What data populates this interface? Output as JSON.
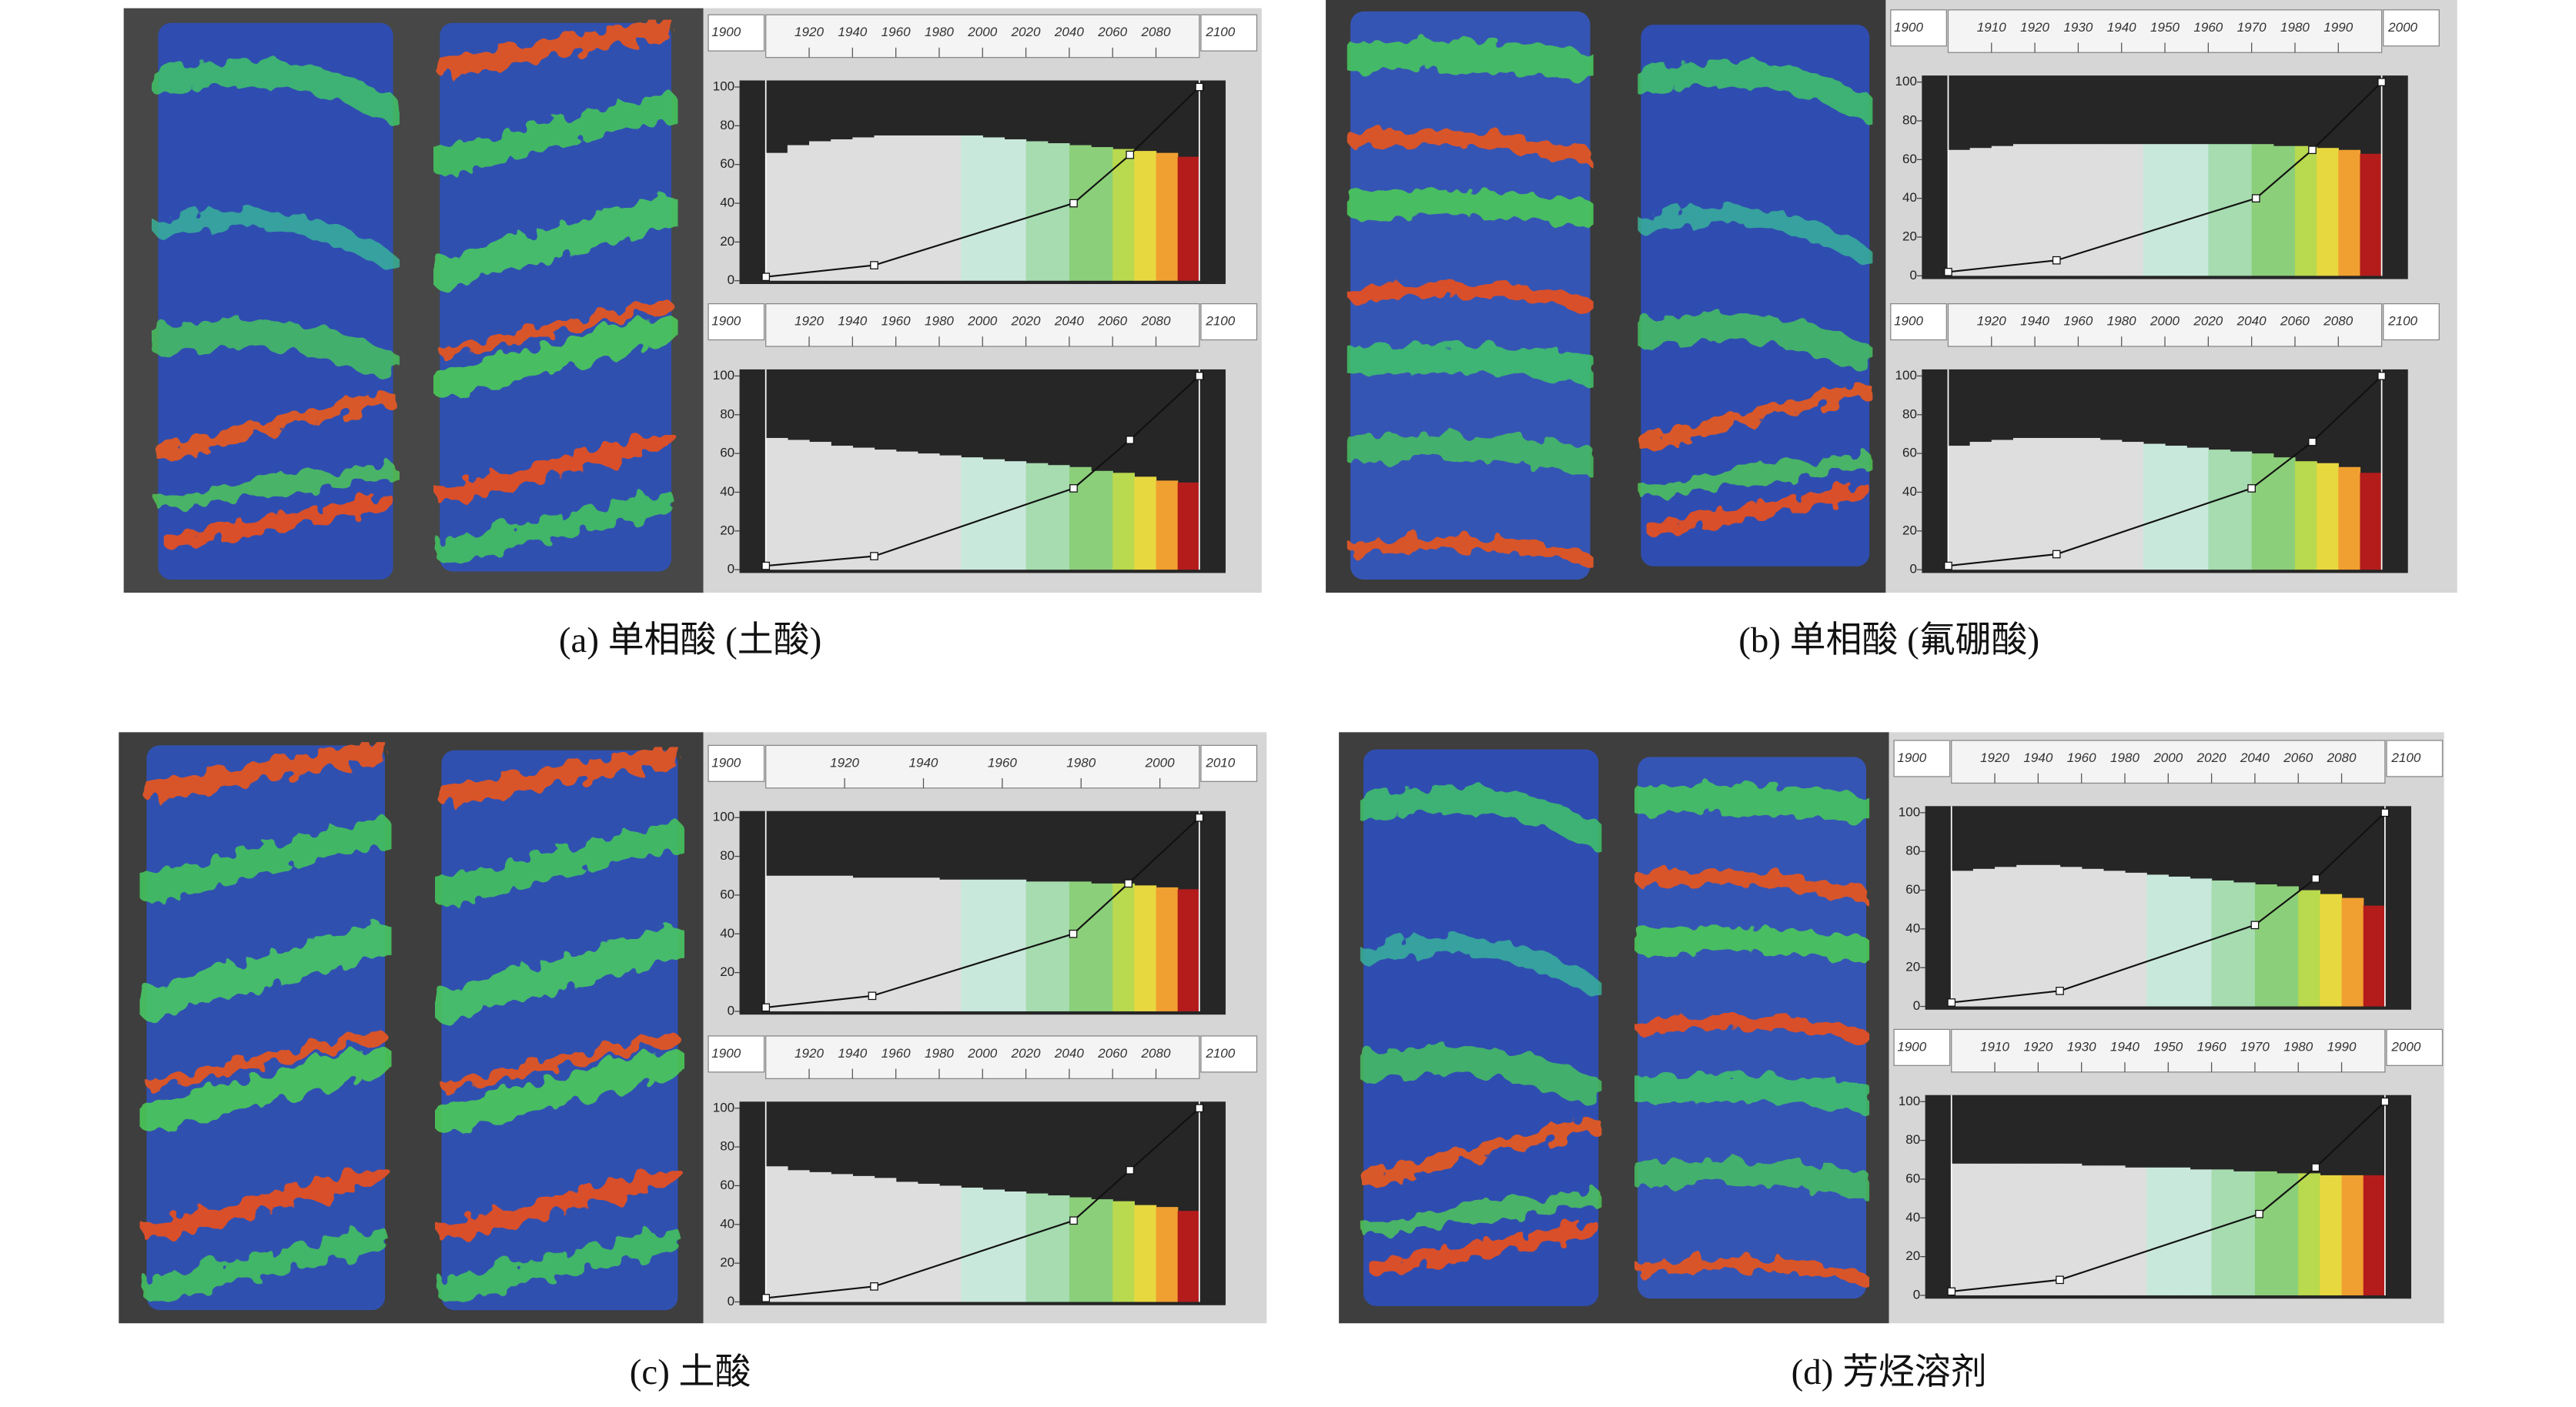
{
  "ylim": [
    0,
    100
  ],
  "yticks": [
    0,
    20,
    40,
    60,
    80,
    100
  ],
  "panels": [
    {
      "caption": "(a) 单相酸 (土酸)",
      "widgets": [
        {
          "xlim": [
            1900,
            2100
          ],
          "xticks": [
            1920,
            1940,
            1960,
            1980,
            2000,
            2020,
            2040,
            2060,
            2080
          ],
          "histogram": [
            66,
            70,
            72,
            73,
            74,
            75,
            75,
            75,
            75,
            75,
            74,
            73,
            72,
            71,
            70,
            69,
            68,
            67,
            66,
            64
          ],
          "curve_x": [
            1900,
            1950,
            2042,
            2068,
            2100
          ],
          "curve_y": [
            2,
            8,
            40,
            65,
            100
          ]
        },
        {
          "xlim": [
            1900,
            2100
          ],
          "xticks": [
            1920,
            1940,
            1960,
            1980,
            2000,
            2020,
            2040,
            2060,
            2080
          ],
          "histogram": [
            68,
            67,
            66,
            64,
            63,
            62,
            61,
            60,
            59,
            58,
            57,
            56,
            55,
            54,
            53,
            51,
            50,
            48,
            46,
            45
          ],
          "curve_x": [
            1900,
            1950,
            2042,
            2068,
            2100
          ],
          "curve_y": [
            2,
            7,
            42,
            67,
            100
          ]
        }
      ]
    },
    {
      "caption": "(b) 单相酸 (氟硼酸)",
      "widgets": [
        {
          "xlim": [
            1900,
            2000
          ],
          "xticks": [
            1910,
            1920,
            1930,
            1940,
            1950,
            1960,
            1970,
            1980,
            1990
          ],
          "histogram": [
            65,
            66,
            67,
            68,
            68,
            68,
            68,
            68,
            68,
            68,
            68,
            68,
            68,
            68,
            68,
            67,
            67,
            66,
            65,
            63
          ],
          "curve_x": [
            1900,
            1925,
            1971,
            1984,
            2000
          ],
          "curve_y": [
            2,
            8,
            40,
            65,
            100
          ]
        },
        {
          "xlim": [
            1900,
            2100
          ],
          "xticks": [
            1920,
            1940,
            1960,
            1980,
            2000,
            2020,
            2040,
            2060,
            2080
          ],
          "histogram": [
            64,
            66,
            67,
            68,
            68,
            68,
            68,
            67,
            66,
            65,
            64,
            63,
            62,
            61,
            60,
            58,
            56,
            55,
            53,
            50
          ],
          "curve_x": [
            1900,
            1950,
            2040,
            2068,
            2100
          ],
          "curve_y": [
            2,
            8,
            42,
            66,
            100
          ]
        }
      ]
    },
    {
      "caption": "(c) 土酸",
      "widgets": [
        {
          "xlim": [
            1900,
            2010
          ],
          "xticks": [
            1920,
            1940,
            1960,
            1980,
            2000
          ],
          "histogram": [
            70,
            70,
            70,
            70,
            69,
            69,
            69,
            69,
            68,
            68,
            68,
            68,
            67,
            67,
            67,
            66,
            66,
            65,
            64,
            63
          ],
          "curve_x": [
            1900,
            1927,
            1978,
            1992,
            2010
          ],
          "curve_y": [
            2,
            8,
            40,
            66,
            100
          ]
        },
        {
          "xlim": [
            1900,
            2100
          ],
          "xticks": [
            1920,
            1940,
            1960,
            1980,
            2000,
            2020,
            2040,
            2060,
            2080
          ],
          "histogram": [
            70,
            68,
            67,
            66,
            65,
            64,
            62,
            61,
            60,
            59,
            58,
            57,
            56,
            55,
            54,
            53,
            52,
            50,
            49,
            47
          ],
          "curve_x": [
            1900,
            1950,
            2042,
            2068,
            2100
          ],
          "curve_y": [
            2,
            8,
            42,
            68,
            100
          ]
        }
      ]
    },
    {
      "caption": "(d) 芳烃溶剂",
      "widgets": [
        {
          "xlim": [
            1900,
            2100
          ],
          "xticks": [
            1920,
            1940,
            1960,
            1980,
            2000,
            2020,
            2040,
            2060,
            2080
          ],
          "histogram": [
            70,
            71,
            72,
            73,
            73,
            72,
            71,
            70,
            69,
            68,
            67,
            66,
            65,
            64,
            63,
            62,
            60,
            58,
            56,
            52
          ],
          "curve_x": [
            1900,
            1950,
            2040,
            2068,
            2100
          ],
          "curve_y": [
            2,
            8,
            42,
            66,
            100
          ]
        },
        {
          "xlim": [
            1900,
            2000
          ],
          "xticks": [
            1910,
            1920,
            1930,
            1940,
            1950,
            1960,
            1970,
            1980,
            1990
          ],
          "histogram": [
            68,
            68,
            68,
            68,
            68,
            68,
            67,
            67,
            66,
            66,
            66,
            65,
            65,
            64,
            64,
            63,
            63,
            62,
            62,
            62
          ],
          "curve_x": [
            1900,
            1925,
            1971,
            1984,
            2000
          ],
          "curve_y": [
            2,
            8,
            42,
            66,
            100
          ]
        }
      ]
    }
  ]
}
